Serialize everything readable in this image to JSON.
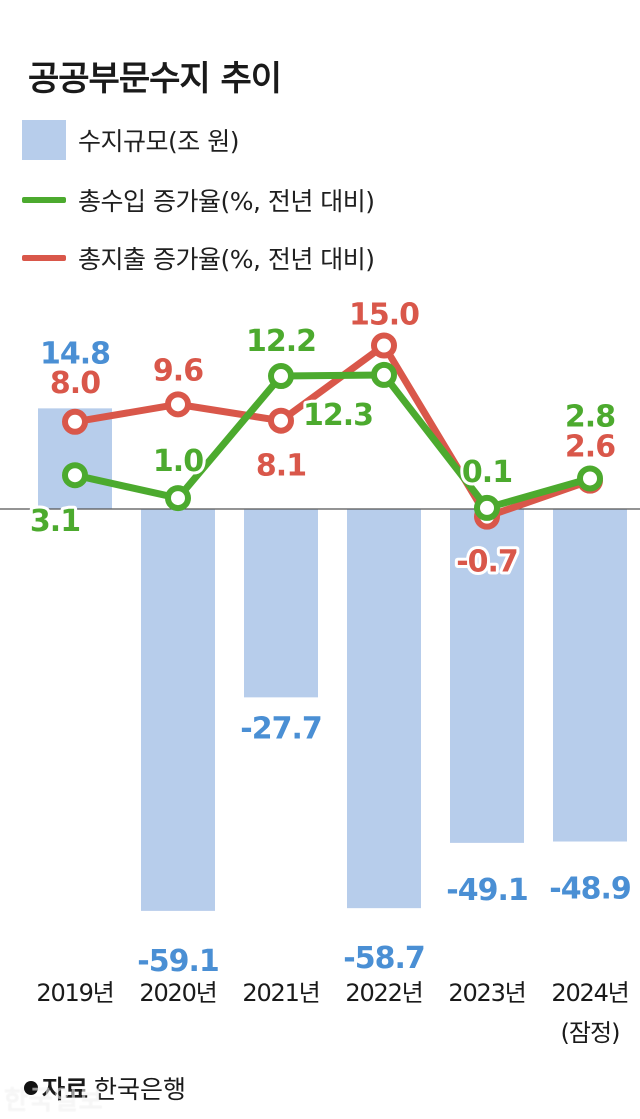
{
  "title": "공공부문수지 추이",
  "legend": [
    {
      "label": "수지규모(조 원)",
      "kind": "box",
      "color": "#b7cdeb"
    },
    {
      "label": "총수입 증가율(%, 전년 대비)",
      "kind": "line",
      "color": "#4caa2e"
    },
    {
      "label": "총지출 증가율(%, 전년 대비)",
      "kind": "line",
      "color": "#d9574a"
    }
  ],
  "chart_data": {
    "type": "bar+line",
    "title": "공공부문수지 추이",
    "categories": [
      "2019년",
      "2020년",
      "2021년",
      "2022년",
      "2023년",
      "2024년"
    ],
    "category_notes": [
      "",
      "",
      "",
      "",
      "",
      "(잠정)"
    ],
    "series": [
      {
        "name": "수지규모(조 원)",
        "type": "bar",
        "color": "#b7cdeb",
        "label_color": "#4a8fd4",
        "values": [
          14.8,
          -59.1,
          -27.7,
          -58.7,
          -49.1,
          -48.9
        ],
        "labels": [
          "14.8",
          "-59.1",
          "-27.7",
          "-58.7",
          "-49.1",
          "-48.9"
        ]
      },
      {
        "name": "총수입 증가율(%, 전년 대비)",
        "type": "line",
        "color": "#4caa2e",
        "values": [
          3.1,
          1.0,
          12.2,
          12.3,
          0.1,
          2.8
        ],
        "labels": [
          "3.1",
          "1.0",
          "12.2",
          "12.3",
          "0.1",
          "2.8"
        ]
      },
      {
        "name": "총지출 증가율(%, 전년 대비)",
        "type": "line",
        "color": "#d9574a",
        "values": [
          8.0,
          9.6,
          8.1,
          15.0,
          -0.7,
          2.6
        ],
        "labels": [
          "8.0",
          "9.6",
          "8.1",
          "15.0",
          "-0.7",
          "2.6"
        ]
      }
    ],
    "grid": false,
    "legend_position": "top-left"
  },
  "source": {
    "label": "자료",
    "text": "한국은행"
  },
  "watermark": "한국일보"
}
